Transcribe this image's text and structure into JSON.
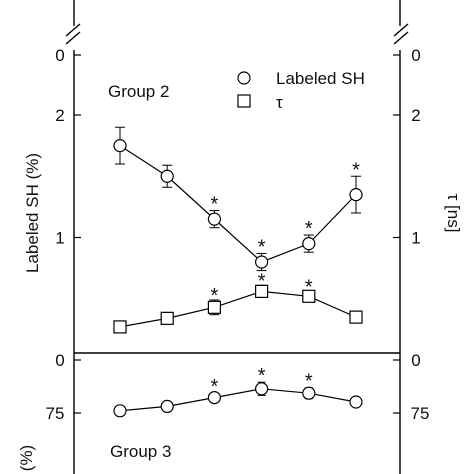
{
  "chart_data": {
    "type": "line",
    "panels": [
      {
        "group_label": "Group 2",
        "ylabel_left": "Labeled SH (%)",
        "ylabel_right": "τ [ns]",
        "ylim": [
          0,
          2.5
        ],
        "left_ticks": [
          {
            "value": 0,
            "label": "0"
          },
          {
            "value": 1,
            "label": "1"
          },
          {
            "value": 2,
            "label": "2"
          }
        ],
        "right_ticks": [
          {
            "value": 0,
            "label": "0"
          },
          {
            "value": 1,
            "label": "1"
          },
          {
            "value": 2,
            "label": "2"
          }
        ],
        "top_break_tick": {
          "value": 0,
          "label": "0"
        },
        "x": [
          1,
          2,
          3,
          4,
          5,
          6
        ],
        "series": [
          {
            "name": "Labeled SH",
            "marker": "circle",
            "values": [
              1.75,
              1.5,
              1.15,
              0.8,
              0.95,
              1.35
            ],
            "errors": [
              0.15,
              0.09,
              0.07,
              0.07,
              0.07,
              0.15
            ],
            "significant": [
              false,
              false,
              true,
              true,
              true,
              true
            ]
          },
          {
            "name": "τ",
            "marker": "square",
            "values": [
              0.27,
              0.34,
              0.43,
              0.56,
              0.52,
              0.35
            ],
            "errors": [
              0.0,
              0.0,
              0.06,
              0.05,
              0.04,
              0.0
            ],
            "significant": [
              false,
              false,
              true,
              true,
              true,
              false
            ]
          }
        ]
      },
      {
        "group_label": "Group 3",
        "ylabel_left": "(%)",
        "left_ticks": [
          {
            "value": 75,
            "label": "75"
          }
        ],
        "right_ticks": [
          {
            "value": 75,
            "label": "75"
          }
        ],
        "x": [
          1,
          2,
          3,
          4,
          5,
          6
        ],
        "series": [
          {
            "marker": "circle",
            "values": [
              76,
              78,
              82,
              86,
              84,
              80
            ],
            "errors": [
              0,
              2,
              2,
              3,
              2.5,
              0
            ],
            "significant": [
              false,
              false,
              true,
              true,
              true,
              false
            ]
          }
        ]
      }
    ],
    "significance_marker": "*"
  }
}
